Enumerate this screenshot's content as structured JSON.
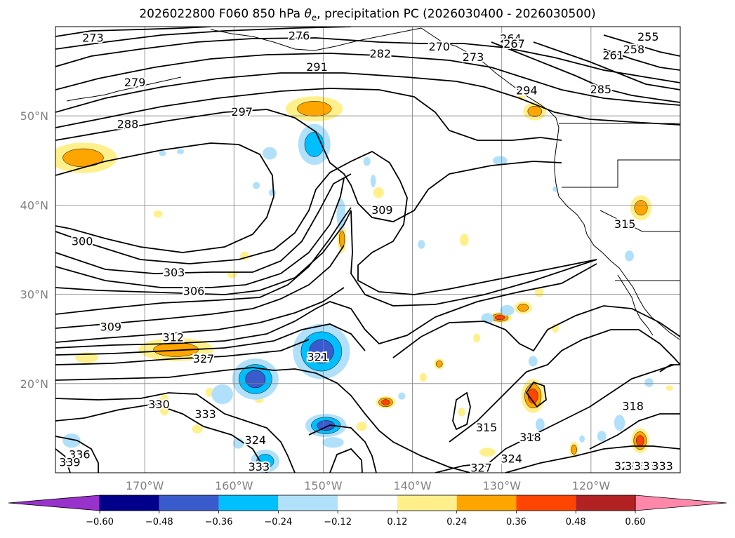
{
  "figure": {
    "title_prefix": "2026022800 F060 850 hPa ",
    "title_symbol": "θ",
    "title_sub": "e",
    "title_suffix": ", precipitation PC (2026030400 - 2026030500)"
  },
  "map": {
    "region": "North Pacific / West coast of North America",
    "projection": "cylindrical",
    "gridlines": true,
    "lat_ticks": [
      {
        "lat": 50,
        "label": "50°N"
      },
      {
        "lat": 40,
        "label": "40°N"
      },
      {
        "lat": 30,
        "label": "30°N"
      },
      {
        "lat": 20,
        "label": "20°N"
      }
    ],
    "lon_ticks": [
      {
        "lon": -170,
        "label": "170°W"
      },
      {
        "lon": -160,
        "label": "160°W"
      },
      {
        "lon": -150,
        "label": "150°W"
      },
      {
        "lon": -140,
        "label": "140°W"
      },
      {
        "lon": -130,
        "label": "130°W"
      },
      {
        "lon": -120,
        "label": "120°W"
      }
    ],
    "contour_field": "850 hPa equivalent potential temperature",
    "contour_labels": [
      {
        "text": "273",
        "lon": -175.8,
        "lat": 58.8
      },
      {
        "text": "276",
        "lon": -152.7,
        "lat": 59.0
      },
      {
        "text": "270",
        "lon": -137.0,
        "lat": 57.8
      },
      {
        "text": "264",
        "lon": -129.0,
        "lat": 58.7
      },
      {
        "text": "267",
        "lon": -128.6,
        "lat": 58.1
      },
      {
        "text": "273",
        "lon": -133.2,
        "lat": 56.6
      },
      {
        "text": "282",
        "lon": -143.6,
        "lat": 57.0
      },
      {
        "text": "261",
        "lon": -117.5,
        "lat": 56.8
      },
      {
        "text": "258",
        "lon": -115.2,
        "lat": 57.5
      },
      {
        "text": "255",
        "lon": -113.6,
        "lat": 58.9
      },
      {
        "text": "279",
        "lon": -171.1,
        "lat": 53.8
      },
      {
        "text": "291",
        "lon": -150.7,
        "lat": 55.5
      },
      {
        "text": "294",
        "lon": -127.2,
        "lat": 52.9
      },
      {
        "text": "285",
        "lon": -118.9,
        "lat": 53.0
      },
      {
        "text": "297",
        "lon": -159.1,
        "lat": 50.5
      },
      {
        "text": "288",
        "lon": -171.9,
        "lat": 49.1
      },
      {
        "text": "309",
        "lon": -143.4,
        "lat": 39.5
      },
      {
        "text": "315",
        "lon": -116.2,
        "lat": 37.9
      },
      {
        "text": "300",
        "lon": -177.0,
        "lat": 36.0
      },
      {
        "text": "303",
        "lon": -166.7,
        "lat": 32.5
      },
      {
        "text": "306",
        "lon": -164.5,
        "lat": 30.4
      },
      {
        "text": "309",
        "lon": -173.8,
        "lat": 26.4
      },
      {
        "text": "312",
        "lon": -166.8,
        "lat": 25.2
      },
      {
        "text": "327",
        "lon": -163.4,
        "lat": 22.8
      },
      {
        "text": "321",
        "lon": -150.6,
        "lat": 23.0
      },
      {
        "text": "330",
        "lon": -168.4,
        "lat": 17.7
      },
      {
        "text": "333",
        "lon": -163.2,
        "lat": 16.6
      },
      {
        "text": "324",
        "lon": -157.6,
        "lat": 13.7
      },
      {
        "text": "336",
        "lon": -177.3,
        "lat": 12.1
      },
      {
        "text": "339",
        "lon": -178.4,
        "lat": 11.2
      },
      {
        "text": "333",
        "lon": -157.2,
        "lat": 10.7
      },
      {
        "text": "315",
        "lon": -131.7,
        "lat": 15.1
      },
      {
        "text": "318",
        "lon": -126.8,
        "lat": 14.0
      },
      {
        "text": "324",
        "lon": -128.9,
        "lat": 11.6
      },
      {
        "text": "327",
        "lon": -132.3,
        "lat": 10.6
      },
      {
        "text": "318",
        "lon": -115.3,
        "lat": 17.5
      },
      {
        "text": "321",
        "lon": -116.2,
        "lat": 10.8
      },
      {
        "text": "324",
        "lon": -115.0,
        "lat": 10.8
      },
      {
        "text": "327",
        "lon": -114.0,
        "lat": 10.8
      },
      {
        "text": "330",
        "lon": -113.0,
        "lat": 10.8
      },
      {
        "text": "333",
        "lon": -112.0,
        "lat": 10.8
      }
    ],
    "precip_anomaly_blobs": [
      {
        "lon": -151.0,
        "lat": 50.8,
        "rx": 3.2,
        "ry": 1.4,
        "value": 0.3
      },
      {
        "lon": -176.9,
        "lat": 45.3,
        "rx": 3.8,
        "ry": 1.7,
        "value": 0.3
      },
      {
        "lon": -168.5,
        "lat": 39.0,
        "rx": 0.5,
        "ry": 0.4,
        "value": 0.2
      },
      {
        "lon": -143.8,
        "lat": 41.4,
        "rx": 0.6,
        "ry": 0.6,
        "value": 0.2
      },
      {
        "lon": -114.4,
        "lat": 39.7,
        "rx": 1.2,
        "ry": 1.4,
        "value": 0.3
      },
      {
        "lon": -126.3,
        "lat": 50.5,
        "rx": 1.3,
        "ry": 1.0,
        "value": 0.3
      },
      {
        "lon": -127.8,
        "lat": 52.2,
        "rx": 0.4,
        "ry": 0.5,
        "value": 0.2
      },
      {
        "lon": -134.2,
        "lat": 36.1,
        "rx": 0.5,
        "ry": 0.7,
        "value": 0.2
      },
      {
        "lon": -147.9,
        "lat": 36.2,
        "rx": 0.5,
        "ry": 1.6,
        "value": 0.3
      },
      {
        "lon": -158.8,
        "lat": 34.3,
        "rx": 0.5,
        "ry": 0.5,
        "value": 0.2
      },
      {
        "lon": -160.2,
        "lat": 32.2,
        "rx": 0.5,
        "ry": 0.4,
        "value": 0.2
      },
      {
        "lon": -166.5,
        "lat": 23.8,
        "rx": 4.2,
        "ry": 1.3,
        "value": 0.3
      },
      {
        "lon": -176.5,
        "lat": 22.9,
        "rx": 1.3,
        "ry": 0.6,
        "value": 0.2
      },
      {
        "lon": -167.8,
        "lat": 17.6,
        "rx": 0.6,
        "ry": 1.2,
        "value": 0.2
      },
      {
        "lon": -143.0,
        "lat": 17.9,
        "rx": 1.1,
        "ry": 0.7,
        "value": 0.38
      },
      {
        "lon": -130.2,
        "lat": 27.4,
        "rx": 1.3,
        "ry": 0.6,
        "value": 0.38
      },
      {
        "lon": -127.6,
        "lat": 28.5,
        "rx": 1.0,
        "ry": 0.7,
        "value": 0.3
      },
      {
        "lon": -124.0,
        "lat": 26.2,
        "rx": 0.4,
        "ry": 0.5,
        "value": 0.2
      },
      {
        "lon": -137.0,
        "lat": 22.2,
        "rx": 0.6,
        "ry": 0.6,
        "value": 0.3
      },
      {
        "lon": -138.8,
        "lat": 20.7,
        "rx": 0.4,
        "ry": 0.5,
        "value": 0.2
      },
      {
        "lon": -126.5,
        "lat": 18.6,
        "rx": 1.3,
        "ry": 1.9,
        "value": 0.38
      },
      {
        "lon": -134.5,
        "lat": 16.8,
        "rx": 0.4,
        "ry": 0.5,
        "value": 0.2
      },
      {
        "lon": -121.9,
        "lat": 12.6,
        "rx": 0.5,
        "ry": 0.9,
        "value": 0.3
      },
      {
        "lon": -114.5,
        "lat": 13.6,
        "rx": 1.0,
        "ry": 1.4,
        "value": 0.4
      },
      {
        "lon": -111.2,
        "lat": 19.5,
        "rx": 0.4,
        "ry": 0.3,
        "value": 0.2
      },
      {
        "lon": -164.1,
        "lat": 14.9,
        "rx": 0.6,
        "ry": 0.5,
        "value": 0.2
      },
      {
        "lon": -131.6,
        "lat": 12.3,
        "rx": 0.9,
        "ry": 0.5,
        "value": 0.2
      },
      {
        "lon": -132.8,
        "lat": 25.1,
        "rx": 0.4,
        "ry": 0.5,
        "value": 0.2
      },
      {
        "lon": -157.2,
        "lat": 18.2,
        "rx": 0.5,
        "ry": 0.4,
        "value": 0.2
      },
      {
        "lon": -145.7,
        "lat": 15.2,
        "rx": 0.6,
        "ry": 0.5,
        "value": 0.2
      },
      {
        "lon": -162.7,
        "lat": 19.0,
        "rx": 0.5,
        "ry": 0.5,
        "value": 0.2
      },
      {
        "lon": -174.0,
        "lat": 26.4,
        "rx": 0.4,
        "ry": 0.3,
        "value": 0.2
      },
      {
        "lon": -125.8,
        "lat": 30.2,
        "rx": 0.5,
        "ry": 0.5,
        "value": 0.2
      }
    ],
    "precip_deficit_blobs": [
      {
        "lon": -150.2,
        "lat": 23.6,
        "rx": 3.2,
        "ry": 3.1,
        "value": -0.45
      },
      {
        "lon": -157.6,
        "lat": 20.5,
        "rx": 2.6,
        "ry": 2.3,
        "value": -0.4
      },
      {
        "lon": -151.0,
        "lat": 46.8,
        "rx": 1.8,
        "ry": 2.3,
        "value": -0.3
      },
      {
        "lon": -156.0,
        "lat": 45.8,
        "rx": 0.8,
        "ry": 0.7,
        "value": -0.2
      },
      {
        "lon": -168.0,
        "lat": 45.8,
        "rx": 0.4,
        "ry": 0.3,
        "value": -0.2
      },
      {
        "lon": -148.0,
        "lat": 38.9,
        "rx": 0.5,
        "ry": 1.8,
        "value": -0.2
      },
      {
        "lon": -149.7,
        "lat": 15.3,
        "rx": 2.3,
        "ry": 1.3,
        "value": -0.4
      },
      {
        "lon": -148.9,
        "lat": 13.4,
        "rx": 1.2,
        "ry": 0.6,
        "value": -0.2
      },
      {
        "lon": -156.5,
        "lat": 11.3,
        "rx": 1.6,
        "ry": 1.3,
        "value": -0.3
      },
      {
        "lon": -161.3,
        "lat": 18.8,
        "rx": 1.2,
        "ry": 1.1,
        "value": -0.2
      },
      {
        "lon": -159.5,
        "lat": 13.3,
        "rx": 0.6,
        "ry": 0.6,
        "value": -0.2
      },
      {
        "lon": -178.2,
        "lat": 13.6,
        "rx": 1.0,
        "ry": 0.8,
        "value": -0.2
      },
      {
        "lon": -144.4,
        "lat": 42.7,
        "rx": 0.3,
        "ry": 0.7,
        "value": -0.2
      },
      {
        "lon": -145.1,
        "lat": 44.9,
        "rx": 0.4,
        "ry": 0.5,
        "value": -0.2
      },
      {
        "lon": -155.7,
        "lat": 41.4,
        "rx": 0.4,
        "ry": 0.4,
        "value": -0.2
      },
      {
        "lon": -157.5,
        "lat": 42.2,
        "rx": 0.4,
        "ry": 0.4,
        "value": -0.2
      },
      {
        "lon": -166.0,
        "lat": 46.0,
        "rx": 0.4,
        "ry": 0.3,
        "value": -0.2
      },
      {
        "lon": -130.2,
        "lat": 45.0,
        "rx": 0.8,
        "ry": 0.5,
        "value": -0.2
      },
      {
        "lon": -129.4,
        "lat": 28.2,
        "rx": 0.8,
        "ry": 0.6,
        "value": -0.2
      },
      {
        "lon": -131.6,
        "lat": 27.3,
        "rx": 0.7,
        "ry": 0.6,
        "value": -0.2
      },
      {
        "lon": -126.5,
        "lat": 22.5,
        "rx": 0.5,
        "ry": 0.6,
        "value": -0.2
      },
      {
        "lon": -125.7,
        "lat": 15.4,
        "rx": 0.5,
        "ry": 0.7,
        "value": -0.2
      },
      {
        "lon": -118.8,
        "lat": 14.1,
        "rx": 0.5,
        "ry": 0.6,
        "value": -0.2
      },
      {
        "lon": -116.8,
        "lat": 15.6,
        "rx": 0.6,
        "ry": 0.9,
        "value": -0.2
      },
      {
        "lon": -113.5,
        "lat": 20.1,
        "rx": 0.5,
        "ry": 0.5,
        "value": -0.2
      },
      {
        "lon": -115.7,
        "lat": 34.3,
        "rx": 0.5,
        "ry": 0.6,
        "value": -0.2
      },
      {
        "lon": -141.2,
        "lat": 18.6,
        "rx": 0.4,
        "ry": 0.4,
        "value": -0.2
      },
      {
        "lon": -139.0,
        "lat": 35.6,
        "rx": 0.4,
        "ry": 0.5,
        "value": -0.2
      },
      {
        "lon": -124.0,
        "lat": 41.8,
        "rx": 0.3,
        "ry": 0.3,
        "value": -0.2
      },
      {
        "lon": -121.0,
        "lat": 13.8,
        "rx": 0.3,
        "ry": 0.4,
        "value": -0.2
      },
      {
        "lon": -174.0,
        "lat": 26.0,
        "rx": 0.3,
        "ry": 0.3,
        "value": -0.2
      }
    ]
  },
  "colorbar": {
    "levels": [
      "−0.60",
      "−0.48",
      "−0.36",
      "−0.24",
      "−0.12",
      "0.12",
      "0.24",
      "0.36",
      "0.48",
      "0.60"
    ],
    "colors": [
      "#9932cc",
      "#00008b",
      "#3a5bcc",
      "#00bfff",
      "#b0e0fa",
      "#ffffff",
      "#fff08c",
      "#ffa500",
      "#ff4500",
      "#b22222",
      "#ff88aa"
    ]
  }
}
